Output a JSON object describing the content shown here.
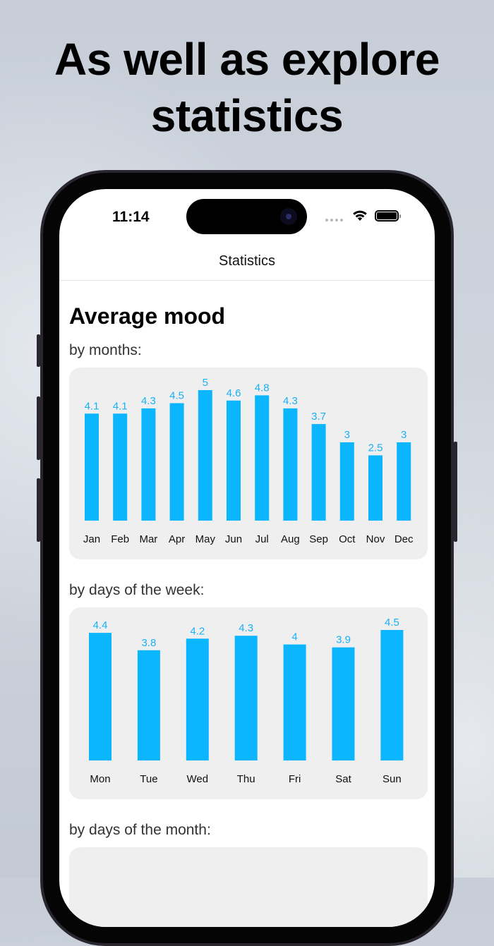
{
  "headline": [
    "As well as explore",
    "statistics"
  ],
  "status_bar": {
    "time": "11:14"
  },
  "nav": {
    "title": "Statistics"
  },
  "section_title": "Average mood",
  "colors": {
    "bar": "#0bb6ff",
    "label": "#1ab0f4",
    "card": "#efefef"
  },
  "chart_data": [
    {
      "type": "bar",
      "subtitle": "by months:",
      "categories": [
        "Jan",
        "Feb",
        "Mar",
        "Apr",
        "May",
        "Jun",
        "Jul",
        "Aug",
        "Sep",
        "Oct",
        "Nov",
        "Dec"
      ],
      "values": [
        4.1,
        4.1,
        4.3,
        4.5,
        5,
        4.6,
        4.8,
        4.3,
        3.7,
        3,
        2.5,
        3
      ],
      "ylim": [
        0,
        5
      ],
      "grid": false
    },
    {
      "type": "bar",
      "subtitle": "by days of the week:",
      "categories": [
        "Mon",
        "Tue",
        "Wed",
        "Thu",
        "Fri",
        "Sat",
        "Sun"
      ],
      "values": [
        4.4,
        3.8,
        4.2,
        4.3,
        4,
        3.9,
        4.5
      ],
      "ylim": [
        0,
        4.5
      ],
      "grid": false
    },
    {
      "type": "bar",
      "subtitle": "by days of the month:",
      "categories": [],
      "values": []
    }
  ]
}
